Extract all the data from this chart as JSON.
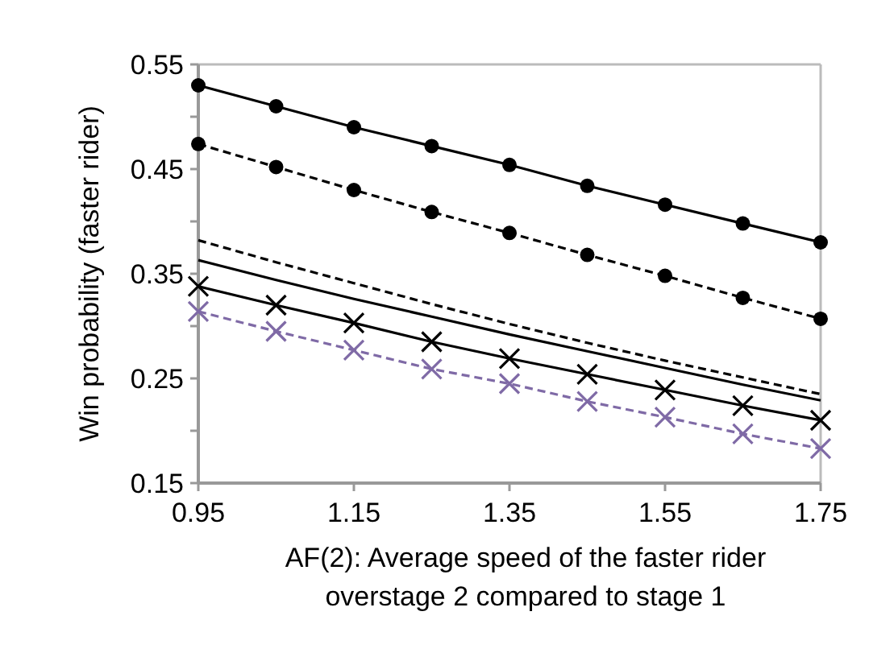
{
  "chart_data": {
    "type": "line",
    "xlabel": "AF(2): Average speed of the faster rider overstage 2 compared to stage 1",
    "ylabel": "Win probability (faster rider)",
    "x": [
      0.95,
      1.05,
      1.15,
      1.25,
      1.35,
      1.45,
      1.55,
      1.65,
      1.75
    ],
    "xlim": [
      0.95,
      1.75
    ],
    "xticks": [
      0.95,
      1.15,
      1.35,
      1.55,
      1.75
    ],
    "ylim": [
      0.15,
      0.55
    ],
    "yticks": [
      0.15,
      {
        "value": 0.2,
        "label": null
      },
      0.25,
      {
        "value": 0.3,
        "label": null
      },
      0.35,
      {
        "value": 0.4,
        "label": null
      },
      0.45,
      {
        "value": 0.5,
        "label": null
      },
      0.55
    ],
    "grid": false,
    "series": [
      {
        "color": "#000000",
        "marker": "circle",
        "line_style": "solid",
        "values": [
          0.53,
          0.51,
          0.49,
          0.472,
          0.454,
          0.434,
          0.416,
          0.398,
          0.38
        ]
      },
      {
        "color": "#000000",
        "marker": "circle",
        "line_style": "dashed",
        "values": [
          0.474,
          0.452,
          0.43,
          0.409,
          0.389,
          0.368,
          0.348,
          0.327,
          0.307
        ]
      },
      {
        "color": "#000000",
        "marker": "none",
        "line_style": "dashed",
        "values": [
          0.382,
          0.361,
          0.341,
          0.321,
          0.302,
          0.284,
          0.267,
          0.251,
          0.235
        ]
      },
      {
        "color": "#000000",
        "marker": "none",
        "line_style": "solid",
        "values": [
          0.363,
          0.344,
          0.326,
          0.309,
          0.292,
          0.276,
          0.26,
          0.244,
          0.229
        ]
      },
      {
        "color": "#000000",
        "marker": "cross",
        "line_style": "solid",
        "values": [
          0.338,
          0.32,
          0.303,
          0.285,
          0.269,
          0.254,
          0.239,
          0.224,
          0.21
        ]
      },
      {
        "color": "#7f6aa6",
        "marker": "cross",
        "line_style": "dashed",
        "values": [
          0.314,
          0.295,
          0.277,
          0.259,
          0.245,
          0.228,
          0.213,
          0.197,
          0.183
        ]
      }
    ]
  }
}
